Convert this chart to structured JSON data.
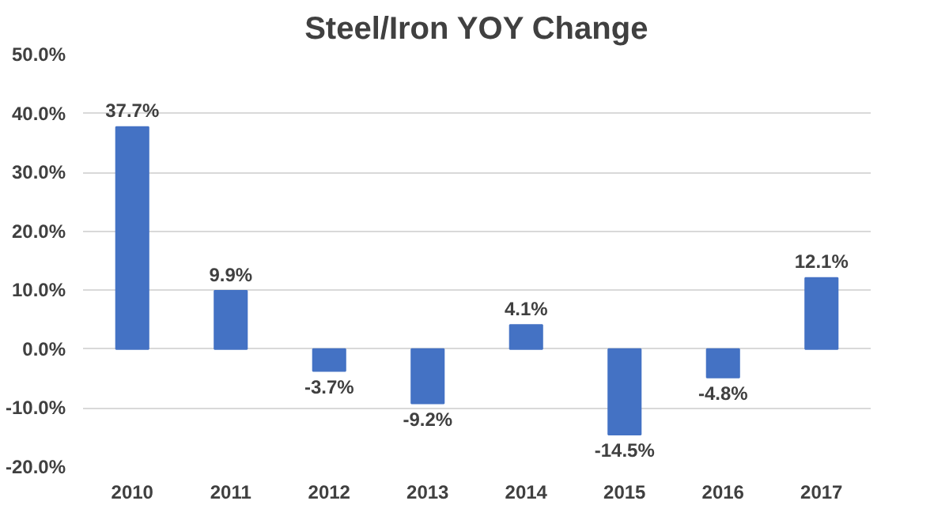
{
  "chart_data": {
    "type": "bar",
    "title": "Steel/Iron YOY Change",
    "categories": [
      "2010",
      "2011",
      "2012",
      "2013",
      "2014",
      "2015",
      "2016",
      "2017"
    ],
    "values": [
      37.7,
      9.9,
      -3.7,
      -9.2,
      4.1,
      -14.5,
      -4.8,
      12.1
    ],
    "value_labels": [
      "37.7%",
      "9.9%",
      "-3.7%",
      "-9.2%",
      "4.1%",
      "-14.5%",
      "-4.8%",
      "12.1%"
    ],
    "color": "#4472c4",
    "ylim": [
      -20,
      50
    ],
    "yticks": [
      {
        "value": -20,
        "label": "-20.0%"
      },
      {
        "value": -10,
        "label": "-10.0%"
      },
      {
        "value": 0,
        "label": "0.0%"
      },
      {
        "value": 10,
        "label": "10.0%"
      },
      {
        "value": 20,
        "label": "20.0%"
      },
      {
        "value": 30,
        "label": "30.0%"
      },
      {
        "value": 40,
        "label": "40.0%"
      },
      {
        "value": 50,
        "label": "50.0%"
      }
    ],
    "grid": "y"
  }
}
